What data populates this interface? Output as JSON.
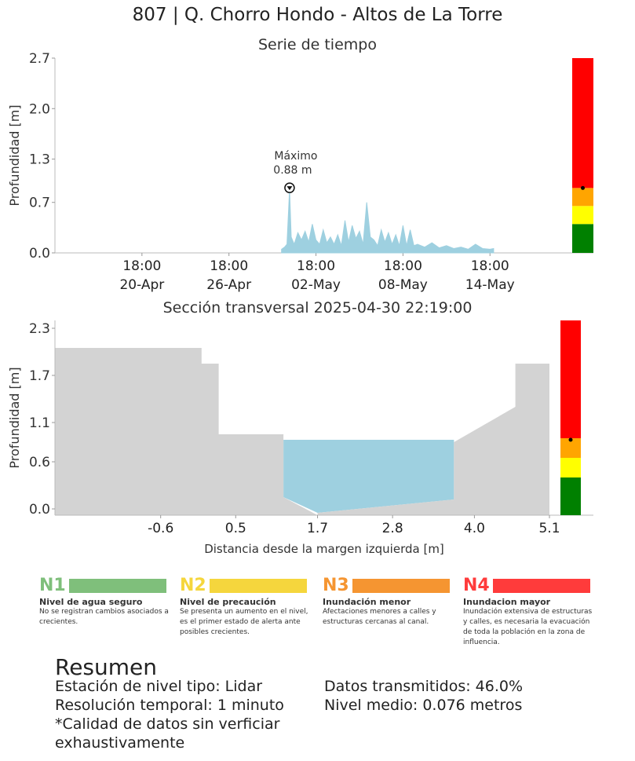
{
  "title": "807 | Q. Chorro Hondo - Altos de La Torre",
  "chart_data": [
    {
      "type": "area",
      "title": "Serie de tiempo",
      "ylabel": "Profundidad [m]",
      "xlabel": "",
      "ylim": [
        0,
        2.7
      ],
      "yticks": [
        "0.0",
        "0.7",
        "1.3",
        "2.0",
        "2.7"
      ],
      "ytick_values": [
        0.0,
        0.7,
        1.3,
        2.0,
        2.7
      ],
      "xlim": [
        "2025-04-14T18:00",
        "2025-05-19T12:00"
      ],
      "xticks": [
        {
          "time": "2025-04-20T18:00",
          "line1": "18:00",
          "line2": "20-Apr"
        },
        {
          "time": "2025-04-26T18:00",
          "line1": "18:00",
          "line2": "26-Apr"
        },
        {
          "time": "2025-05-02T18:00",
          "line1": "18:00",
          "line2": "02-May"
        },
        {
          "time": "2025-05-08T18:00",
          "line1": "18:00",
          "line2": "08-May"
        },
        {
          "time": "2025-05-14T18:00",
          "line1": "18:00",
          "line2": "14-May"
        }
      ],
      "series_color": "#9ed0e0",
      "data_start": "2025-04-30T09:00",
      "series": [
        {
          "x": "2025-04-30T09:00",
          "y": 0.05
        },
        {
          "x": "2025-04-30T14:00",
          "y": 0.08
        },
        {
          "x": "2025-04-30T18:00",
          "y": 0.12
        },
        {
          "x": "2025-04-30T22:19",
          "y": 0.88
        },
        {
          "x": "2025-05-01T01:00",
          "y": 0.22
        },
        {
          "x": "2025-05-01T06:00",
          "y": 0.12
        },
        {
          "x": "2025-05-01T12:00",
          "y": 0.28
        },
        {
          "x": "2025-05-01T18:00",
          "y": 0.18
        },
        {
          "x": "2025-05-02T00:00",
          "y": 0.3
        },
        {
          "x": "2025-05-02T06:00",
          "y": 0.15
        },
        {
          "x": "2025-05-02T12:00",
          "y": 0.4
        },
        {
          "x": "2025-05-02T18:00",
          "y": 0.18
        },
        {
          "x": "2025-05-03T00:00",
          "y": 0.12
        },
        {
          "x": "2025-05-03T06:00",
          "y": 0.32
        },
        {
          "x": "2025-05-03T12:00",
          "y": 0.14
        },
        {
          "x": "2025-05-03T18:00",
          "y": 0.22
        },
        {
          "x": "2025-05-04T00:00",
          "y": 0.12
        },
        {
          "x": "2025-05-04T06:00",
          "y": 0.25
        },
        {
          "x": "2025-05-04T12:00",
          "y": 0.1
        },
        {
          "x": "2025-05-04T18:00",
          "y": 0.45
        },
        {
          "x": "2025-05-05T00:00",
          "y": 0.15
        },
        {
          "x": "2025-05-05T06:00",
          "y": 0.38
        },
        {
          "x": "2025-05-05T12:00",
          "y": 0.2
        },
        {
          "x": "2025-05-05T18:00",
          "y": 0.3
        },
        {
          "x": "2025-05-06T00:00",
          "y": 0.12
        },
        {
          "x": "2025-05-06T06:00",
          "y": 0.7
        },
        {
          "x": "2025-05-06T12:00",
          "y": 0.22
        },
        {
          "x": "2025-05-06T18:00",
          "y": 0.18
        },
        {
          "x": "2025-05-07T00:00",
          "y": 0.1
        },
        {
          "x": "2025-05-07T06:00",
          "y": 0.32
        },
        {
          "x": "2025-05-07T12:00",
          "y": 0.15
        },
        {
          "x": "2025-05-07T18:00",
          "y": 0.28
        },
        {
          "x": "2025-05-08T00:00",
          "y": 0.12
        },
        {
          "x": "2025-05-08T06:00",
          "y": 0.25
        },
        {
          "x": "2025-05-08T12:00",
          "y": 0.1
        },
        {
          "x": "2025-05-08T18:00",
          "y": 0.38
        },
        {
          "x": "2025-05-09T00:00",
          "y": 0.1
        },
        {
          "x": "2025-05-09T06:00",
          "y": 0.32
        },
        {
          "x": "2025-05-09T12:00",
          "y": 0.1
        },
        {
          "x": "2025-05-09T18:00",
          "y": 0.12
        },
        {
          "x": "2025-05-10T06:00",
          "y": 0.08
        },
        {
          "x": "2025-05-10T18:00",
          "y": 0.14
        },
        {
          "x": "2025-05-11T06:00",
          "y": 0.07
        },
        {
          "x": "2025-05-11T18:00",
          "y": 0.1
        },
        {
          "x": "2025-05-12T06:00",
          "y": 0.06
        },
        {
          "x": "2025-05-12T18:00",
          "y": 0.08
        },
        {
          "x": "2025-05-13T06:00",
          "y": 0.05
        },
        {
          "x": "2025-05-13T18:00",
          "y": 0.12
        },
        {
          "x": "2025-05-14T06:00",
          "y": 0.06
        },
        {
          "x": "2025-05-14T18:00",
          "y": 0.05
        },
        {
          "x": "2025-05-15T00:00",
          "y": 0.06
        }
      ],
      "annotation": {
        "line1": "Máximo",
        "line2": "0.88 m",
        "x": "2025-04-30T22:19",
        "y": 0.88
      },
      "level_bar": {
        "bands": [
          {
            "from": 0.0,
            "to": 0.4,
            "color": "#008000"
          },
          {
            "from": 0.4,
            "to": 0.65,
            "color": "#ffff00"
          },
          {
            "from": 0.65,
            "to": 0.9,
            "color": "#ffa500"
          },
          {
            "from": 0.9,
            "to": 2.7,
            "color": "#ff0000"
          }
        ],
        "marker": 0.9
      }
    },
    {
      "type": "area",
      "title": "Sección transversal 2025-04-30 22:19:00",
      "ylabel": "Profundidad [m]",
      "xlabel": "Distancia desde la margen izquierda [m]",
      "xlim": [
        -2.15,
        5.6
      ],
      "ylim": [
        -0.08,
        2.4
      ],
      "xticks": [
        "-0.6",
        "0.5",
        "1.7",
        "2.8",
        "4.0",
        "5.1"
      ],
      "xtick_values": [
        -0.6,
        0.5,
        1.7,
        2.8,
        4.0,
        5.1
      ],
      "yticks": [
        "0.0",
        "0.6",
        "1.1",
        "1.7",
        "2.3"
      ],
      "ytick_values": [
        0.0,
        0.6,
        1.1,
        1.7,
        2.3
      ],
      "ground_color": "#d3d3d3",
      "water_color": "#9ed0e0",
      "water_level": 0.88,
      "ground_profile": [
        {
          "x": -2.15,
          "y": 2.05
        },
        {
          "x": 0.0,
          "y": 2.05
        },
        {
          "x": 0.0,
          "y": 1.85
        },
        {
          "x": 0.25,
          "y": 1.85
        },
        {
          "x": 0.25,
          "y": 0.95
        },
        {
          "x": 1.2,
          "y": 0.95
        },
        {
          "x": 1.2,
          "y": 0.15
        },
        {
          "x": 1.7,
          "y": -0.05
        },
        {
          "x": 3.7,
          "y": 0.12
        },
        {
          "x": 3.7,
          "y": 0.85
        },
        {
          "x": 4.6,
          "y": 1.3
        },
        {
          "x": 4.6,
          "y": 1.85
        },
        {
          "x": 5.1,
          "y": 1.85
        },
        {
          "x": 5.1,
          "y": -0.08
        }
      ],
      "level_bar": {
        "bands": [
          {
            "from": -0.08,
            "to": 0.4,
            "color": "#008000"
          },
          {
            "from": 0.4,
            "to": 0.65,
            "color": "#ffff00"
          },
          {
            "from": 0.65,
            "to": 0.9,
            "color": "#ffa500"
          },
          {
            "from": 0.9,
            "to": 2.4,
            "color": "#ff0000"
          }
        ],
        "marker": 0.88
      }
    }
  ],
  "legend": [
    {
      "code": "N1",
      "color": "#7fbf7b",
      "code_color": "#7fbf7b",
      "name": "Nivel de agua seguro",
      "desc": "No se registran cambios asociados a crecientes."
    },
    {
      "code": "N2",
      "color": "#f5d63d",
      "code_color": "#f5d63d",
      "name": "Nivel de precaución",
      "desc": "Se presenta un aumento en el nivel, es el primer estado de alerta ante posibles crecientes."
    },
    {
      "code": "N3",
      "color": "#f59531",
      "code_color": "#f59531",
      "name": "Inundación menor",
      "desc": "Afectaciones menores a calles y estructuras cercanas al canal."
    },
    {
      "code": "N4",
      "color": "#ff3b3b",
      "code_color": "#ff3b3b",
      "name": "Inundacion mayor",
      "desc": "Inundación extensiva de estructuras y calles, es necesaria la evacuación de toda la población en la zona de influencia."
    }
  ],
  "summary": {
    "title": "Resumen",
    "left": [
      "Estación de nivel tipo: Lidar",
      "Resolución temporal: 1 minuto",
      "*Calidad de datos sin verficiar",
      "exhaustivamente"
    ],
    "right": [
      "Datos transmitidos: 46.0%",
      "Nivel medio: 0.076 metros"
    ]
  }
}
